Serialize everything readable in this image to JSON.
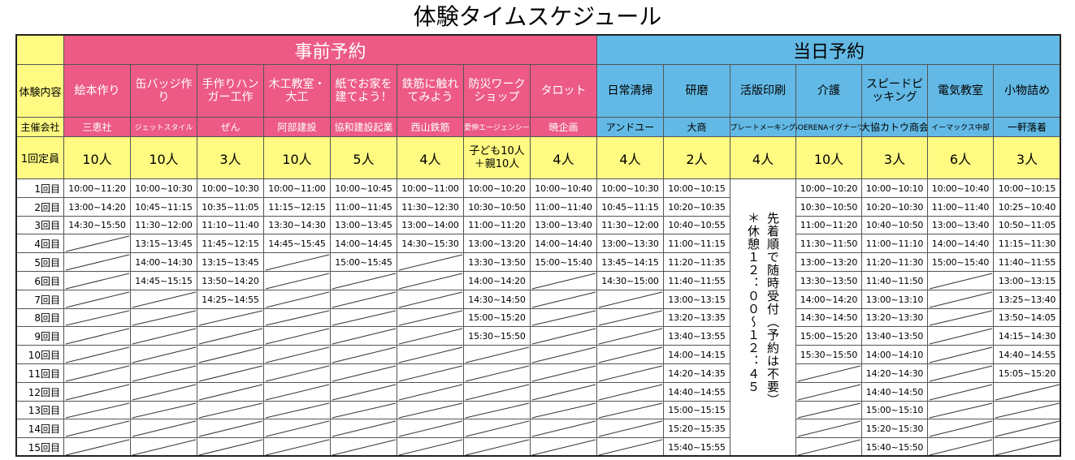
{
  "title": "体験タイムスケジュール",
  "colors": {
    "pink": "#ec5a85",
    "blue": "#63b9e5",
    "yellow": "#fffb82"
  },
  "header_labels": {
    "activity": "体験内容",
    "host": "主催会社",
    "capacity": "1回定員"
  },
  "groups": [
    {
      "name": "事前予約",
      "span": 8
    },
    {
      "name": "当日予約",
      "span": 7
    }
  ],
  "columns": [
    {
      "activity": "絵本作り",
      "host": "三恵社",
      "capacity": "10人",
      "times": [
        "10:00~11:20",
        "13:00~14:20",
        "14:30~15:50"
      ]
    },
    {
      "activity": "缶バッジ作り",
      "host": "ジェットスタイル",
      "capacity": "10人",
      "times": [
        "10:00~10:30",
        "10:45~11:15",
        "11:30~12:00",
        "13:15~13:45",
        "14:00~14:30",
        "14:45~15:15"
      ]
    },
    {
      "activity": "手作りハンガー工作",
      "host": "ぜん",
      "capacity": "3人",
      "times": [
        "10:00~10:30",
        "10:35~11:05",
        "11:10~11:40",
        "11:45~12:15",
        "13:15~13:45",
        "13:50~14:20",
        "14:25~14:55"
      ]
    },
    {
      "activity": "木工教室・大工",
      "host": "阿部建設",
      "capacity": "10人",
      "times": [
        "10:00~11:00",
        "11:15~12:15",
        "13:30~14:30",
        "14:45~15:45"
      ]
    },
    {
      "activity": "紙でお家を建てよう！",
      "host": "協和建設起業",
      "capacity": "5人",
      "times": [
        "10:00~10:45",
        "11:00~11:45",
        "13:00~13:45",
        "14:00~14:45",
        "15:00~15:45"
      ]
    },
    {
      "activity": "鉄筋に触れてみよう",
      "host": "西山鉄筋",
      "capacity": "4人",
      "times": [
        "10:00~11:00",
        "11:30~12:30",
        "13:00~14:00",
        "14:30~15:30"
      ]
    },
    {
      "activity": "防災ワークショップ",
      "host": "愛伸エージェンシー",
      "capacity": "子ども10人＋親10人",
      "times": [
        "10:00~10:20",
        "10:30~10:50",
        "11:00~11:20",
        "13:00~13:20",
        "13:30~13:50",
        "14:00~14:20",
        "14:30~14:50",
        "15:00~15:20",
        "15:30~15:50"
      ]
    },
    {
      "activity": "タロット",
      "host": "暁企画",
      "capacity": "4人",
      "times": [
        "10:00~10:40",
        "11:00~11:40",
        "13:00~13:40",
        "14:00~14:40",
        "15:00~15:40"
      ]
    },
    {
      "activity": "日常清掃",
      "host": "アンドユー",
      "capacity": "4人",
      "times": [
        "10:00~10:30",
        "10:45~11:15",
        "11:30~12:00",
        "13:00~13:30",
        "13:45~14:15",
        "14:30~15:00"
      ]
    },
    {
      "activity": "研磨",
      "host": "大商",
      "capacity": "2人",
      "times": [
        "10:00~10:15",
        "10:20~10:35",
        "10:40~10:55",
        "11:00~11:15",
        "11:20~11:35",
        "11:40~11:55",
        "13:00~13:15",
        "13:20~13:35",
        "13:40~13:55",
        "14:00~14:15",
        "14:20~14:35",
        "14:40~14:55",
        "15:00~15:15",
        "15:20~15:35",
        "15:40~15:55"
      ]
    },
    {
      "activity": "活版印刷",
      "host": "プレートメーキング",
      "capacity": "4人",
      "times": [],
      "note": [
        "先着順で随時受付（予約は不要）",
        "＊休憩１２：００～１２：４５"
      ]
    },
    {
      "activity": "介護",
      "host": "SOERENAイグナーツ",
      "capacity": "10人",
      "times": [
        "10:00~10:20",
        "10:30~10:50",
        "11:00~11:20",
        "11:30~11:50",
        "13:00~13:20",
        "13:30~13:50",
        "14:00~14:20",
        "14:30~14:50",
        "15:00~15:20",
        "15:30~15:50"
      ]
    },
    {
      "activity": "スピードピッキング",
      "host": "大協カトウ商会",
      "capacity": "3人",
      "times": [
        "10:00~10:10",
        "10:20~10:30",
        "10:40~10:50",
        "11:00~11:10",
        "11:20~11:30",
        "11:40~11:50",
        "13:00~13:10",
        "13:20~13:30",
        "13:40~13:50",
        "14:00~14:10",
        "14:20~14:30",
        "14:40~14:50",
        "15:00~15:10",
        "15:20~15:30",
        "15:40~15:50"
      ]
    },
    {
      "activity": "電気教室",
      "host": "イーマックス中部",
      "capacity": "6人",
      "times": [
        "10:00~10:40",
        "11:00~11:40",
        "13:00~13:40",
        "14:00~14:40",
        "15:00~15:40"
      ]
    },
    {
      "activity": "小物詰め",
      "host": "一軒落着",
      "capacity": "3人",
      "times": [
        "10:00~10:15",
        "10:25~10:40",
        "10:50~11:05",
        "11:15~11:30",
        "11:40~11:55",
        "13:00~13:15",
        "13:25~13:40",
        "13:50~14:05",
        "14:15~14:30",
        "14:40~14:55",
        "15:05~15:20"
      ]
    }
  ],
  "rounds": [
    "1回目",
    "2回目",
    "3回目",
    "4回目",
    "5回目",
    "6回目",
    "7回目",
    "8回目",
    "9回目",
    "10回目",
    "11回目",
    "12回目",
    "13回目",
    "14回目",
    "15回目"
  ]
}
